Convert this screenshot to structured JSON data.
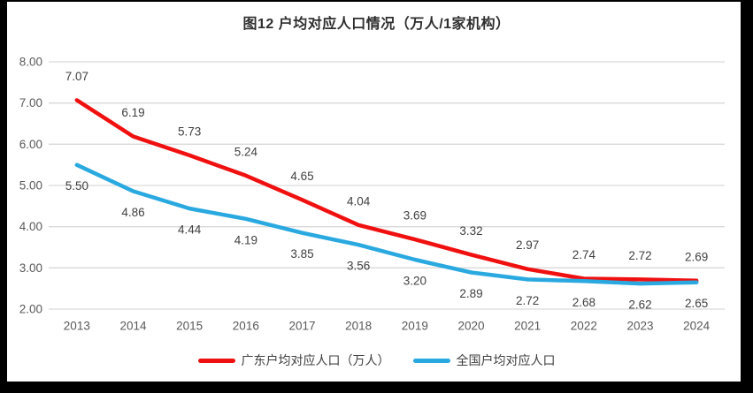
{
  "title": "图12 户均对应人口情况（万人/1家机构）",
  "chart_data": {
    "type": "line",
    "title": "图12 户均对应人口情况（万人/1家机构）",
    "categories": [
      "2013",
      "2014",
      "2015",
      "2016",
      "2017",
      "2018",
      "2019",
      "2020",
      "2021",
      "2022",
      "2023",
      "2024"
    ],
    "series": [
      {
        "name": "广东户均对应人口（万人）",
        "color": "#f01010",
        "values": [
          7.07,
          6.19,
          5.73,
          5.24,
          4.65,
          4.04,
          3.69,
          3.32,
          2.97,
          2.74,
          2.72,
          2.69
        ],
        "label_position": "above"
      },
      {
        "name": "全国户均对应人口",
        "color": "#29a9e0",
        "values": [
          5.5,
          4.86,
          4.44,
          4.19,
          3.85,
          3.56,
          3.2,
          2.89,
          2.72,
          2.68,
          2.62,
          2.65
        ],
        "label_position": "below"
      }
    ],
    "xlabel": "",
    "ylabel": "",
    "ylim": [
      2.0,
      8.0
    ],
    "yticks": [
      "8.00",
      "7.00",
      "6.00",
      "5.00",
      "4.00",
      "3.00",
      "2.00"
    ],
    "grid": "horizontal",
    "legend_position": "bottom",
    "data_labels": true,
    "label_decimals": 2
  },
  "colors": {
    "frame_border": "#000000",
    "plot_background": "#ffffff",
    "gridline": "#d9d9d9",
    "tick_label": "#595959",
    "data_label": "#404040",
    "title_text": "#2e2e2e"
  }
}
